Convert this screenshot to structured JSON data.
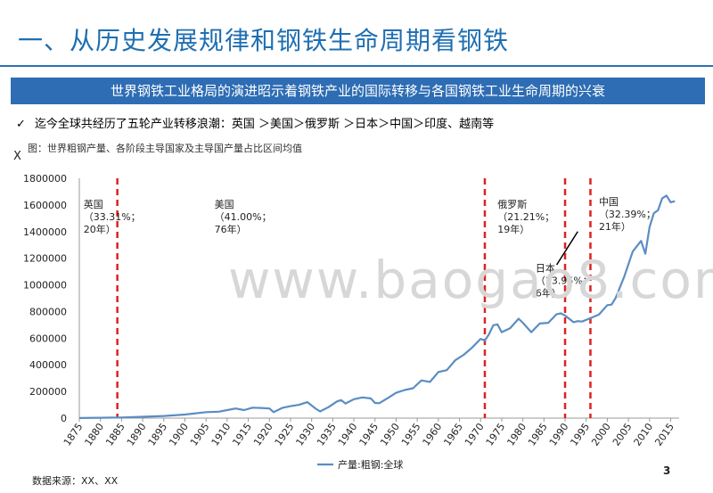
{
  "page": {
    "title": "一、从历史发展规律和钢铁生命周期看钢铁",
    "banner": "世界钢铁工业格局的演进昭示着钢铁产业的国际转移与各国钢铁工业生命周期的兴衰",
    "bullet_mark": "✓",
    "bullet": "迄今全球共经历了五轮产业转移浪潮：英国 ＞美国＞俄罗斯 ＞日本＞中国＞印度、越南等",
    "figure_note": "图：世界粗钢产量、各阶段主导国家及主导国产量占比区间均值",
    "x_mark": "X",
    "watermark": "www.baogao8.com",
    "source": "数据来源：XX、XX",
    "page_number": "3"
  },
  "chart_data": {
    "type": "line",
    "title": "",
    "xlabel": "",
    "ylabel": "",
    "xlim": [
      1875,
      2017
    ],
    "ylim": [
      0,
      1800000
    ],
    "x_ticks": [
      1875,
      1880,
      1885,
      1890,
      1895,
      1900,
      1905,
      1910,
      1915,
      1920,
      1925,
      1930,
      1935,
      1940,
      1945,
      1950,
      1955,
      1960,
      1965,
      1970,
      1975,
      1980,
      1985,
      1990,
      1995,
      2000,
      2005,
      2010,
      2015
    ],
    "y_ticks": [
      0,
      200000,
      400000,
      600000,
      800000,
      1000000,
      1200000,
      1400000,
      1600000,
      1800000
    ],
    "legend": "bottom",
    "line_color": "#5b8dc3",
    "divider_color": "#e02020",
    "series": [
      {
        "name": "产量:粗钢:全球",
        "x": [
          1875,
          1880,
          1885,
          1890,
          1895,
          1900,
          1905,
          1908,
          1910,
          1912,
          1914,
          1916,
          1918,
          1920,
          1921,
          1923,
          1925,
          1927,
          1929,
          1931,
          1932,
          1934,
          1936,
          1937,
          1938,
          1940,
          1942,
          1944,
          1945,
          1946,
          1948,
          1950,
          1952,
          1954,
          1956,
          1958,
          1960,
          1962,
          1964,
          1966,
          1968,
          1970,
          1971,
          1972,
          1973,
          1974,
          1975,
          1977,
          1979,
          1980,
          1982,
          1984,
          1986,
          1988,
          1989,
          1990,
          1992,
          1993,
          1994,
          1996,
          1998,
          2000,
          2001,
          2002,
          2004,
          2006,
          2008,
          2009,
          2010,
          2011,
          2012,
          2013,
          2014,
          2015,
          2016
        ],
        "y": [
          1000,
          3000,
          5000,
          10000,
          16000,
          27000,
          45000,
          48000,
          60000,
          72000,
          60000,
          78000,
          76000,
          72000,
          45000,
          76000,
          90000,
          100000,
          120000,
          70000,
          50000,
          82000,
          125000,
          135000,
          110000,
          142000,
          155000,
          148000,
          114000,
          112000,
          150000,
          190000,
          211000,
          224000,
          283000,
          272000,
          346000,
          360000,
          434000,
          475000,
          530000,
          595000,
          582000,
          630000,
          697000,
          703000,
          645000,
          675000,
          746000,
          716000,
          645000,
          710000,
          715000,
          780000,
          786000,
          770000,
          720000,
          728000,
          725000,
          750000,
          777000,
          848000,
          852000,
          904000,
          1062000,
          1250000,
          1330000,
          1234000,
          1433000,
          1538000,
          1560000,
          1650000,
          1670000,
          1620000,
          1628000
        ]
      }
    ],
    "dividers": [
      1884,
      1971,
      1990,
      1996
    ],
    "annotations": [
      {
        "x": 1876,
        "y": 1580000,
        "lines": [
          "英国",
          "（33.31%；",
          "20年）"
        ]
      },
      {
        "x": 1907,
        "y": 1580000,
        "lines": [
          "美国",
          "（41.00%；",
          "76年）"
        ]
      },
      {
        "x": 1974,
        "y": 1580000,
        "lines": [
          "俄罗斯",
          "（21.21%；",
          "19年）"
        ]
      },
      {
        "x": 1983,
        "y": 1100000,
        "lines": [
          "日本",
          "（13.95%；",
          "6年）"
        ]
      },
      {
        "x": 1998,
        "y": 1600000,
        "lines": [
          "中国",
          "（32.39%；",
          "21年）"
        ]
      }
    ],
    "pointer": {
      "x1": 1988,
      "y1": 1150000,
      "x2": 1993,
      "y2": 1400000
    }
  }
}
